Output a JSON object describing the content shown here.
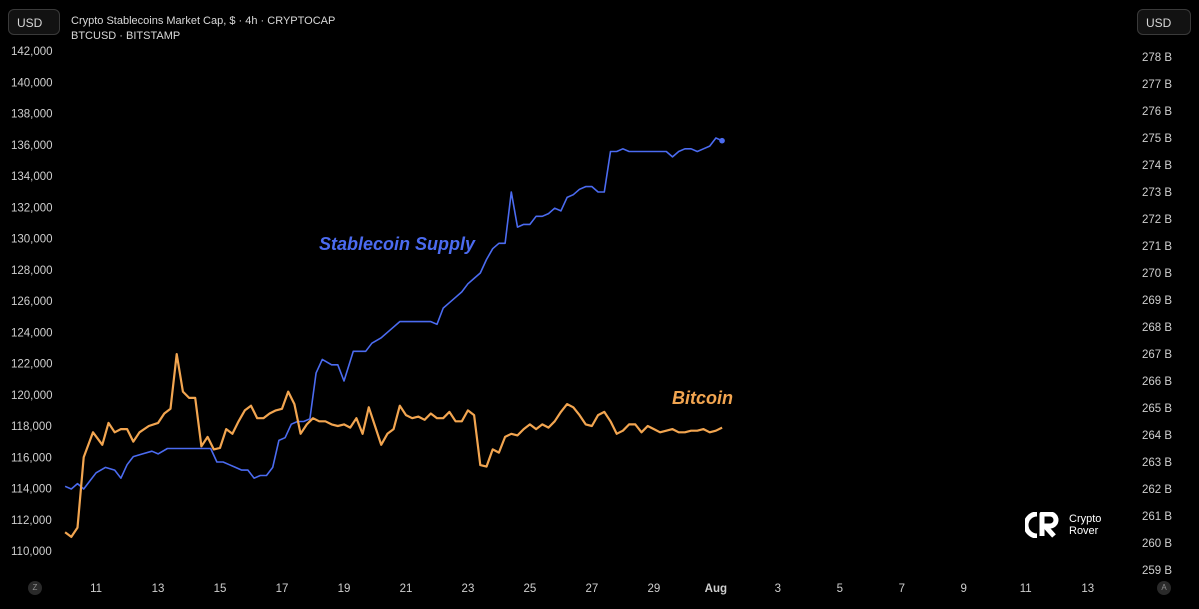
{
  "header": {
    "currency_left": "USD",
    "currency_right": "USD",
    "series_1_legend": "Crypto Stablecoins Market Cap, $ · 4h · CRYPTOCAP",
    "series_2_legend": "BTCUSD · BITSTAMP"
  },
  "annotations": {
    "stablecoin_label": "Stablecoin Supply",
    "bitcoin_label": "Bitcoin"
  },
  "controls": {
    "zoom_label": "Z",
    "auto_label": "A"
  },
  "logo": {
    "line1": "Crypto",
    "line2": "Rover"
  },
  "colors": {
    "stablecoin": "#4b6bf0",
    "bitcoin": "#f2a550",
    "background": "#000000",
    "axis_text": "#cfcfcf"
  },
  "chart_data": {
    "type": "line",
    "x_ticks": [
      "11",
      "13",
      "15",
      "17",
      "19",
      "21",
      "23",
      "25",
      "27",
      "29",
      "Aug",
      "3",
      "5",
      "7",
      "9",
      "11",
      "13"
    ],
    "left_axis": {
      "ticks": [
        "110,000",
        "112,000",
        "114,000",
        "116,000",
        "118,000",
        "120,000",
        "122,000",
        "124,000",
        "126,000",
        "128,000",
        "130,000",
        "132,000",
        "134,000",
        "136,000",
        "138,000",
        "140,000",
        "142,000"
      ],
      "range": [
        110000,
        142000
      ]
    },
    "right_axis": {
      "ticks": [
        "259 B",
        "260 B",
        "261 B",
        "262 B",
        "263 B",
        "264 B",
        "265 B",
        "266 B",
        "267 B",
        "268 B",
        "269 B",
        "270 B",
        "271 B",
        "272 B",
        "273 B",
        "274 B",
        "275 B",
        "276 B",
        "277 B",
        "278 B"
      ],
      "range": [
        259,
        278
      ]
    },
    "x_range": [
      9.9,
      44.3
    ],
    "series": [
      {
        "name": "Stablecoin Supply",
        "axis": "left",
        "x": [
          10.0,
          10.2,
          10.4,
          10.6,
          10.8,
          11.0,
          11.3,
          11.6,
          11.8,
          12.0,
          12.2,
          12.5,
          12.8,
          13.0,
          13.3,
          13.6,
          14.0,
          14.3,
          14.5,
          14.7,
          14.9,
          15.1,
          15.3,
          15.5,
          15.7,
          15.9,
          16.1,
          16.3,
          16.5,
          16.7,
          16.9,
          17.1,
          17.3,
          17.5,
          17.7,
          17.9,
          18.1,
          18.3,
          18.6,
          18.8,
          19.0,
          19.3,
          19.5,
          19.7,
          19.9,
          20.2,
          20.5,
          20.8,
          21.1,
          21.4,
          21.6,
          21.8,
          22.0,
          22.2,
          22.4,
          22.6,
          22.8,
          23.0,
          23.2,
          23.4,
          23.6,
          23.8,
          24.0,
          24.2,
          24.4,
          24.6,
          24.8,
          25.0,
          25.2,
          25.4,
          25.6,
          25.8,
          26.0,
          26.2,
          26.4,
          26.6,
          26.8,
          27.0,
          27.2,
          27.4,
          27.6,
          27.8,
          28.0,
          28.2,
          28.4,
          28.6,
          28.8,
          29.0,
          29.2,
          29.4,
          29.6,
          29.8,
          30.0,
          30.2,
          30.4,
          30.6,
          30.8,
          31.0,
          31.2
        ],
        "y": [
          262.1,
          262.0,
          262.2,
          262.0,
          262.3,
          262.6,
          262.8,
          262.7,
          262.4,
          262.9,
          263.2,
          263.3,
          263.4,
          263.3,
          263.5,
          263.5,
          263.5,
          263.5,
          263.5,
          263.5,
          263.0,
          263.0,
          262.9,
          262.8,
          262.7,
          262.7,
          262.4,
          262.5,
          262.5,
          262.8,
          263.8,
          263.9,
          264.4,
          264.5,
          264.5,
          264.6,
          266.3,
          266.8,
          266.6,
          266.6,
          266.0,
          267.1,
          267.1,
          267.1,
          267.4,
          267.6,
          267.9,
          268.2,
          268.2,
          268.2,
          268.2,
          268.2,
          268.1,
          268.7,
          268.9,
          269.1,
          269.3,
          269.6,
          269.8,
          270.0,
          270.5,
          270.9,
          271.1,
          271.1,
          273.0,
          271.7,
          271.8,
          271.8,
          272.1,
          272.1,
          272.2,
          272.4,
          272.3,
          272.8,
          272.9,
          273.1,
          273.2,
          273.2,
          273.0,
          273.0,
          274.5,
          274.5,
          274.6,
          274.5,
          274.5,
          274.5,
          274.5,
          274.5,
          274.5,
          274.5,
          274.3,
          274.5,
          274.6,
          274.6,
          274.5,
          274.6,
          274.7,
          275.0,
          274.9
        ]
      },
      {
        "name": "Bitcoin",
        "axis": "left",
        "x": [
          10.0,
          10.2,
          10.4,
          10.6,
          10.9,
          11.2,
          11.4,
          11.6,
          11.8,
          12.0,
          12.2,
          12.4,
          12.7,
          13.0,
          13.2,
          13.4,
          13.6,
          13.8,
          14.0,
          14.2,
          14.4,
          14.6,
          14.8,
          15.0,
          15.2,
          15.4,
          15.6,
          15.8,
          16.0,
          16.2,
          16.4,
          16.6,
          16.8,
          17.0,
          17.2,
          17.4,
          17.6,
          17.8,
          18.0,
          18.2,
          18.4,
          18.6,
          18.8,
          19.0,
          19.2,
          19.4,
          19.6,
          19.8,
          20.0,
          20.2,
          20.4,
          20.6,
          20.8,
          21.0,
          21.2,
          21.4,
          21.6,
          21.8,
          22.0,
          22.2,
          22.4,
          22.6,
          22.8,
          23.0,
          23.2,
          23.4,
          23.6,
          23.8,
          24.0,
          24.2,
          24.4,
          24.6,
          24.8,
          25.0,
          25.2,
          25.4,
          25.6,
          25.8,
          26.0,
          26.2,
          26.4,
          26.6,
          26.8,
          27.0,
          27.2,
          27.4,
          27.6,
          27.8,
          28.0,
          28.2,
          28.4,
          28.6,
          28.8,
          29.0,
          29.2,
          29.4,
          29.6,
          29.8,
          30.0,
          30.2,
          30.4,
          30.6,
          30.8,
          31.0,
          31.2
        ],
        "y": [
          111200,
          110900,
          111500,
          116000,
          117600,
          116800,
          118200,
          117600,
          117800,
          117800,
          117000,
          117600,
          118000,
          118200,
          118800,
          119100,
          122600,
          120200,
          119800,
          119800,
          116700,
          117300,
          116500,
          116600,
          117800,
          117500,
          118300,
          119000,
          119300,
          118500,
          118500,
          118800,
          119000,
          119100,
          120200,
          119400,
          117500,
          118100,
          118500,
          118300,
          118300,
          118100,
          118000,
          118100,
          117900,
          118500,
          117500,
          119200,
          118000,
          116800,
          117500,
          117800,
          119300,
          118700,
          118500,
          118600,
          118400,
          118800,
          118500,
          118500,
          118900,
          118300,
          118300,
          119000,
          118700,
          115500,
          115400,
          116500,
          116300,
          117300,
          117500,
          117400,
          117800,
          118100,
          117800,
          118100,
          117900,
          118300,
          118900,
          119400,
          119200,
          118700,
          118100,
          118000,
          118700,
          118900,
          118300,
          117500,
          117700,
          118100,
          118100,
          117600,
          118000,
          117800,
          117600,
          117700,
          117800,
          117600,
          117600,
          117700,
          117700,
          117800,
          117600,
          117700,
          117900
        ]
      }
    ]
  }
}
